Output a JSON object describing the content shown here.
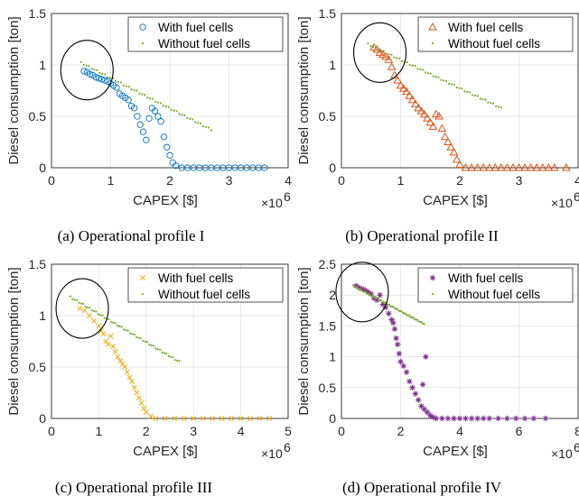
{
  "chart_data": [
    {
      "type": "scatter",
      "caption": "(a)  Operational profile I",
      "xlabel": "CAPEX [$]",
      "ylabel": "Diesel consumption [ton]",
      "x_multiplier": "×10",
      "x_exponent": "6",
      "xlim": [
        0,
        4
      ],
      "ylim": [
        0,
        1.5
      ],
      "xticks": [
        "0",
        "1",
        "2",
        "3",
        "4"
      ],
      "yticks": [
        "0",
        "0.5",
        "1",
        "1.5"
      ],
      "grid": true,
      "legend_position": "top-right",
      "series": [
        {
          "name": "With fuel cells",
          "marker": "circle",
          "color": "#0072BD",
          "points": [
            [
              0.55,
              0.94
            ],
            [
              0.6,
              0.93
            ],
            [
              0.65,
              0.91
            ],
            [
              0.7,
              0.9
            ],
            [
              0.75,
              0.88
            ],
            [
              0.8,
              0.87
            ],
            [
              0.85,
              0.86
            ],
            [
              0.9,
              0.85
            ],
            [
              0.95,
              0.84
            ],
            [
              1.0,
              0.82
            ],
            [
              1.05,
              0.8
            ],
            [
              1.1,
              0.78
            ],
            [
              1.15,
              0.72
            ],
            [
              1.2,
              0.7
            ],
            [
              1.25,
              0.68
            ],
            [
              1.3,
              0.66
            ],
            [
              1.35,
              0.6
            ],
            [
              1.4,
              0.58
            ],
            [
              1.45,
              0.5
            ],
            [
              1.5,
              0.42
            ],
            [
              1.55,
              0.35
            ],
            [
              1.6,
              0.27
            ],
            [
              1.65,
              0.48
            ],
            [
              1.7,
              0.58
            ],
            [
              1.75,
              0.55
            ],
            [
              1.8,
              0.5
            ],
            [
              1.85,
              0.45
            ],
            [
              1.9,
              0.3
            ],
            [
              1.95,
              0.2
            ],
            [
              2.0,
              0.12
            ],
            [
              2.05,
              0.05
            ],
            [
              2.1,
              0.02
            ],
            [
              2.2,
              0.0
            ],
            [
              2.3,
              0.0
            ],
            [
              2.4,
              0.0
            ],
            [
              2.5,
              0.0
            ],
            [
              2.6,
              0.0
            ],
            [
              2.7,
              0.0
            ],
            [
              2.8,
              0.0
            ],
            [
              2.9,
              0.0
            ],
            [
              3.0,
              0.0
            ],
            [
              3.1,
              0.0
            ],
            [
              3.2,
              0.0
            ],
            [
              3.3,
              0.0
            ],
            [
              3.4,
              0.0
            ],
            [
              3.5,
              0.0
            ],
            [
              3.6,
              0.0
            ]
          ]
        },
        {
          "name": "Without fuel cells",
          "marker": "dot",
          "color": "#77AC30",
          "line": [
            [
              0.5,
              1.02
            ],
            [
              2.7,
              0.37
            ]
          ],
          "count": 50
        }
      ],
      "annotation": {
        "shape": "ellipse",
        "center": [
          0.6,
          0.95
        ]
      }
    },
    {
      "type": "scatter",
      "caption": "(b)  Operational profile II",
      "xlabel": "CAPEX [$]",
      "ylabel": "Diesel consumption [ton]",
      "x_multiplier": "×10",
      "x_exponent": "6",
      "xlim": [
        0,
        4
      ],
      "ylim": [
        0,
        1.5
      ],
      "xticks": [
        "0",
        "1",
        "2",
        "3",
        "4"
      ],
      "yticks": [
        "0",
        "0.5",
        "1",
        "1.5"
      ],
      "grid": true,
      "legend_position": "top-right",
      "series": [
        {
          "name": "With fuel cells",
          "marker": "triangle",
          "color": "#D95319",
          "points": [
            [
              0.55,
              1.17
            ],
            [
              0.6,
              1.15
            ],
            [
              0.65,
              1.12
            ],
            [
              0.7,
              1.1
            ],
            [
              0.75,
              1.08
            ],
            [
              0.8,
              1.05
            ],
            [
              0.85,
              0.98
            ],
            [
              0.9,
              0.9
            ],
            [
              0.95,
              0.85
            ],
            [
              1.0,
              0.8
            ],
            [
              1.05,
              0.77
            ],
            [
              1.1,
              0.74
            ],
            [
              1.15,
              0.7
            ],
            [
              1.2,
              0.66
            ],
            [
              1.25,
              0.62
            ],
            [
              1.3,
              0.58
            ],
            [
              1.35,
              0.55
            ],
            [
              1.4,
              0.52
            ],
            [
              1.45,
              0.48
            ],
            [
              1.5,
              0.44
            ],
            [
              1.55,
              0.4
            ],
            [
              1.6,
              0.52
            ],
            [
              1.65,
              0.5
            ],
            [
              1.7,
              0.38
            ],
            [
              1.75,
              0.3
            ],
            [
              1.8,
              0.25
            ],
            [
              1.85,
              0.2
            ],
            [
              1.9,
              0.15
            ],
            [
              1.95,
              0.08
            ],
            [
              2.0,
              0.03
            ],
            [
              2.1,
              0.0
            ],
            [
              2.2,
              0.0
            ],
            [
              2.3,
              0.0
            ],
            [
              2.4,
              0.0
            ],
            [
              2.5,
              0.0
            ],
            [
              2.6,
              0.0
            ],
            [
              2.7,
              0.0
            ],
            [
              2.8,
              0.0
            ],
            [
              2.9,
              0.0
            ],
            [
              3.0,
              0.0
            ],
            [
              3.1,
              0.0
            ],
            [
              3.2,
              0.0
            ],
            [
              3.3,
              0.0
            ],
            [
              3.4,
              0.0
            ],
            [
              3.5,
              0.0
            ],
            [
              3.6,
              0.0
            ],
            [
              3.8,
              0.0
            ]
          ]
        },
        {
          "name": "Without fuel cells",
          "marker": "dot",
          "color": "#77AC30",
          "line": [
            [
              0.45,
              1.2
            ],
            [
              2.7,
              0.58
            ]
          ],
          "count": 52
        }
      ],
      "annotation": {
        "shape": "ellipse",
        "center": [
          0.65,
          1.12
        ]
      }
    },
    {
      "type": "scatter",
      "caption": "(c)  Operational profile III",
      "xlabel": "CAPEX [$]",
      "ylabel": "Diesel consumption [ton]",
      "x_multiplier": "×10",
      "x_exponent": "6",
      "xlim": [
        0,
        5
      ],
      "ylim": [
        0,
        1.5
      ],
      "xticks": [
        "0",
        "1",
        "2",
        "3",
        "4",
        "5"
      ],
      "yticks": [
        "0",
        "0.5",
        "1",
        "1.5"
      ],
      "grid": true,
      "legend_position": "top-right",
      "series": [
        {
          "name": "With fuel cells",
          "marker": "x",
          "color": "#EDB120",
          "points": [
            [
              0.6,
              1.07
            ],
            [
              0.7,
              1.05
            ],
            [
              0.8,
              1.0
            ],
            [
              0.9,
              0.95
            ],
            [
              1.0,
              0.9
            ],
            [
              1.05,
              0.85
            ],
            [
              1.1,
              0.82
            ],
            [
              1.15,
              0.75
            ],
            [
              1.2,
              0.72
            ],
            [
              1.25,
              0.8
            ],
            [
              1.3,
              0.7
            ],
            [
              1.35,
              0.65
            ],
            [
              1.4,
              0.6
            ],
            [
              1.45,
              0.56
            ],
            [
              1.5,
              0.53
            ],
            [
              1.55,
              0.5
            ],
            [
              1.6,
              0.45
            ],
            [
              1.65,
              0.4
            ],
            [
              1.7,
              0.36
            ],
            [
              1.75,
              0.3
            ],
            [
              1.8,
              0.25
            ],
            [
              1.85,
              0.2
            ],
            [
              1.9,
              0.15
            ],
            [
              1.95,
              0.1
            ],
            [
              2.0,
              0.06
            ],
            [
              2.1,
              0.02
            ],
            [
              2.2,
              0.0
            ],
            [
              2.4,
              0.0
            ],
            [
              2.6,
              0.0
            ],
            [
              2.8,
              0.0
            ],
            [
              3.0,
              0.0
            ],
            [
              3.2,
              0.0
            ],
            [
              3.4,
              0.0
            ],
            [
              3.6,
              0.0
            ],
            [
              3.8,
              0.0
            ],
            [
              4.0,
              0.0
            ],
            [
              4.2,
              0.0
            ],
            [
              4.4,
              0.0
            ],
            [
              4.6,
              0.0
            ]
          ]
        },
        {
          "name": "Without fuel cells",
          "marker": "dot",
          "color": "#77AC30",
          "line": [
            [
              0.4,
              1.18
            ],
            [
              2.7,
              0.55
            ]
          ],
          "count": 52
        }
      ],
      "annotation": {
        "shape": "ellipse",
        "center": [
          0.65,
          1.07
        ]
      }
    },
    {
      "type": "scatter",
      "caption": "(d)  Operational profile IV",
      "xlabel": "CAPEX [$]",
      "ylabel": "Diesel consumption [ton]",
      "x_multiplier": "×10",
      "x_exponent": "6",
      "xlim": [
        0,
        8
      ],
      "ylim": [
        0,
        2.5
      ],
      "xticks": [
        "0",
        "2",
        "4",
        "6",
        "8"
      ],
      "yticks": [
        "0",
        "0.5",
        "1",
        "1.5",
        "2",
        "2.5"
      ],
      "grid": true,
      "legend_position": "top-right",
      "series": [
        {
          "name": "With fuel cells",
          "marker": "asterisk",
          "color": "#7E2F8E",
          "points": [
            [
              0.5,
              2.15
            ],
            [
              0.6,
              2.12
            ],
            [
              0.7,
              2.1
            ],
            [
              0.8,
              2.08
            ],
            [
              0.9,
              2.05
            ],
            [
              1.0,
              2.02
            ],
            [
              1.1,
              1.95
            ],
            [
              1.2,
              1.92
            ],
            [
              1.3,
              2.0
            ],
            [
              1.4,
              1.85
            ],
            [
              1.5,
              1.8
            ],
            [
              1.6,
              1.7
            ],
            [
              1.7,
              1.6
            ],
            [
              1.75,
              1.55
            ],
            [
              1.8,
              1.45
            ],
            [
              1.85,
              1.3
            ],
            [
              1.9,
              1.2
            ],
            [
              1.95,
              1.05
            ],
            [
              2.0,
              0.92
            ],
            [
              2.1,
              0.85
            ],
            [
              2.2,
              0.75
            ],
            [
              2.3,
              0.6
            ],
            [
              2.4,
              0.5
            ],
            [
              2.5,
              0.4
            ],
            [
              2.6,
              0.3
            ],
            [
              2.7,
              0.2
            ],
            [
              2.75,
              0.55
            ],
            [
              2.8,
              0.15
            ],
            [
              2.85,
              1.0
            ],
            [
              2.9,
              0.1
            ],
            [
              3.0,
              0.05
            ],
            [
              3.1,
              0.02
            ],
            [
              3.2,
              0.0
            ],
            [
              3.4,
              0.0
            ],
            [
              3.6,
              0.0
            ],
            [
              3.8,
              0.0
            ],
            [
              4.0,
              0.0
            ],
            [
              4.2,
              0.0
            ],
            [
              4.4,
              0.0
            ],
            [
              4.6,
              0.0
            ],
            [
              4.8,
              0.0
            ],
            [
              5.0,
              0.0
            ],
            [
              5.3,
              0.0
            ],
            [
              5.6,
              0.0
            ],
            [
              5.9,
              0.0
            ],
            [
              6.2,
              0.0
            ],
            [
              6.5,
              0.0
            ],
            [
              6.9,
              0.0
            ]
          ]
        },
        {
          "name": "Without fuel cells",
          "marker": "dot",
          "color": "#77AC30",
          "line": [
            [
              0.4,
              2.15
            ],
            [
              2.8,
              1.53
            ]
          ],
          "count": 54
        }
      ],
      "annotation": {
        "shape": "ellipse",
        "center": [
          0.7,
          2.05
        ]
      }
    }
  ]
}
